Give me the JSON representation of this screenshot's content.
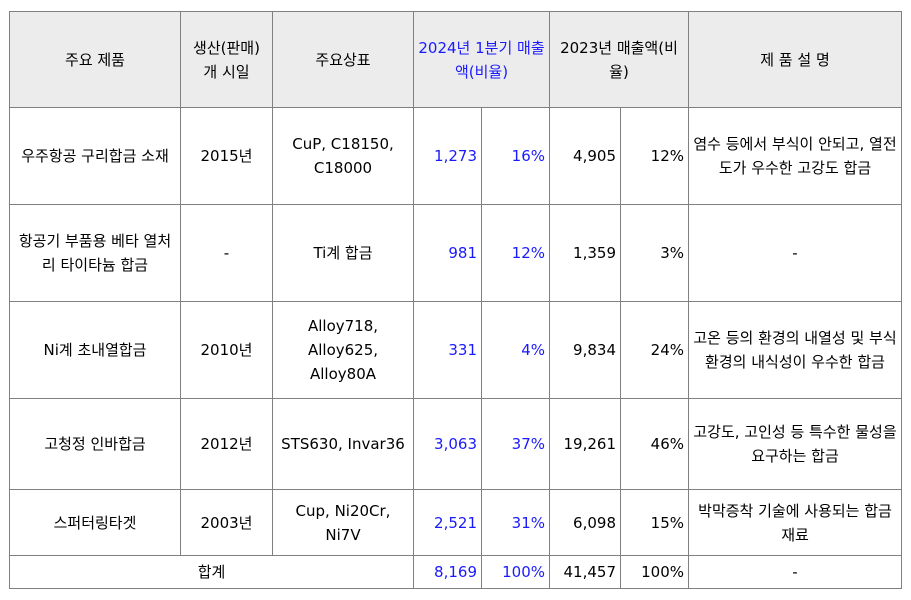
{
  "header": {
    "product": "주요 제품",
    "launch": "생산(판매) 개 시일",
    "brand": "주요상표",
    "q1_sales": "2024년 1분기 매출액(비율)",
    "y2023_sales": "2023년 매출액(비율)",
    "description": "제 품 설 명"
  },
  "rows": [
    {
      "product": "우주항공 구리합금 소재",
      "launch": "2015년",
      "brand": "CuP, C18150, C18000",
      "q1_amount": "1,273",
      "q1_ratio": "16%",
      "y2023_amount": "4,905",
      "y2023_ratio": "12%",
      "description": "염수 등에서 부식이 안되고, 열전도가 우수한 고강도 합금"
    },
    {
      "product": "항공기 부품용 베타 열처리 타이타늄 합금",
      "launch": "-",
      "brand": "Ti계 합금",
      "q1_amount": "981",
      "q1_ratio": "12%",
      "y2023_amount": "1,359",
      "y2023_ratio": "3%",
      "description": "-"
    },
    {
      "product": "Ni계 초내열합금",
      "launch": "2010년",
      "brand": "Alloy718, Alloy625, Alloy80A",
      "q1_amount": "331",
      "q1_ratio": "4%",
      "y2023_amount": "9,834",
      "y2023_ratio": "24%",
      "description": "고온 등의 환경의 내열성 및 부식환경의 내식성이 우수한 합금"
    },
    {
      "product": "고청정 인바합금",
      "launch": "2012년",
      "brand": "STS630, Invar36",
      "q1_amount": "3,063",
      "q1_ratio": "37%",
      "y2023_amount": "19,261",
      "y2023_ratio": "46%",
      "description": "고강도, 고인성 등 특수한 물성을 요구하는 합금"
    },
    {
      "product": "스퍼터링타겟",
      "launch": "2003년",
      "brand": "Cup, Ni20Cr, Ni7V",
      "q1_amount": "2,521",
      "q1_ratio": "31%",
      "y2023_amount": "6,098",
      "y2023_ratio": "15%",
      "description": "박막증착 기술에 사용되는 합금재료"
    }
  ],
  "total": {
    "label": "합계",
    "q1_amount": "8,169",
    "q1_ratio": "100%",
    "y2023_amount": "41,457",
    "y2023_ratio": "100%",
    "description": "-"
  }
}
